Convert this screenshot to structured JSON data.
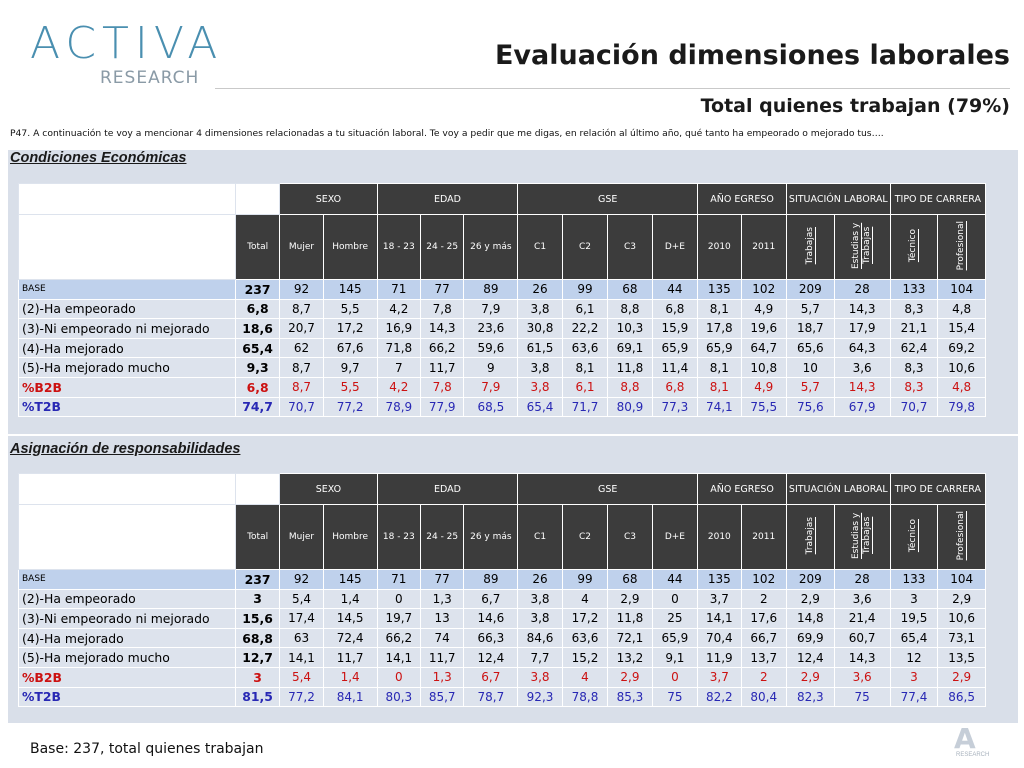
{
  "header": {
    "logo_text": "ACTIVA",
    "logo_subtext": "RESEARCH",
    "title": "Evaluación dimensiones laborales",
    "subtitle": "Total quienes trabajan (79%)"
  },
  "question": "P47. A continuación te voy a mencionar 4 dimensiones relacionadas a tu situación laboral. Te voy a pedir que me digas, en relación al último año, qué tanto ha empeorado o mejorado tus….",
  "column_groups": [
    {
      "label": "SEXO",
      "span": 2
    },
    {
      "label": "EDAD",
      "span": 3
    },
    {
      "label": "GSE",
      "span": 4
    },
    {
      "label": "AÑO EGRESO",
      "span": 2
    },
    {
      "label": "SITUACIÓN LABORAL",
      "span": 2
    },
    {
      "label": "TIPO DE CARRERA",
      "span": 2
    }
  ],
  "columns": [
    "Total",
    "Mujer",
    "Hombre",
    "18 - 23",
    "24 - 25",
    "26 y más",
    "C1",
    "C2",
    "C3",
    "D+E",
    "2010",
    "2011",
    "Trabajas",
    "Estudias y Trabajas",
    "Técnico",
    "Profesional"
  ],
  "sections": [
    {
      "label": "Condiciones Económicas",
      "rows": [
        {
          "label": "BASE",
          "type": "base",
          "values": [
            "237",
            "92",
            "145",
            "71",
            "77",
            "89",
            "26",
            "99",
            "68",
            "44",
            "135",
            "102",
            "209",
            "28",
            "133",
            "104"
          ]
        },
        {
          "label": "(2)-Ha empeorado",
          "type": "normal",
          "values": [
            "6,8",
            "8,7",
            "5,5",
            "4,2",
            "7,8",
            "7,9",
            "3,8",
            "6,1",
            "8,8",
            "6,8",
            "8,1",
            "4,9",
            "5,7",
            "14,3",
            "8,3",
            "4,8"
          ]
        },
        {
          "label": "(3)-Ni empeorado ni mejorado",
          "type": "normal",
          "values": [
            "18,6",
            "20,7",
            "17,2",
            "16,9",
            "14,3",
            "23,6",
            "30,8",
            "22,2",
            "10,3",
            "15,9",
            "17,8",
            "19,6",
            "18,7",
            "17,9",
            "21,1",
            "15,4"
          ]
        },
        {
          "label": "(4)-Ha mejorado",
          "type": "normal",
          "values": [
            "65,4",
            "62",
            "67,6",
            "71,8",
            "66,2",
            "59,6",
            "61,5",
            "63,6",
            "69,1",
            "65,9",
            "65,9",
            "64,7",
            "65,6",
            "64,3",
            "62,4",
            "69,2"
          ]
        },
        {
          "label": "(5)-Ha mejorado mucho",
          "type": "normal",
          "values": [
            "9,3",
            "8,7",
            "9,7",
            "7",
            "11,7",
            "9",
            "3,8",
            "8,1",
            "11,8",
            "11,4",
            "8,1",
            "10,8",
            "10",
            "3,6",
            "8,3",
            "10,6"
          ]
        },
        {
          "label": "%B2B",
          "type": "b2b",
          "values": [
            "6,8",
            "8,7",
            "5,5",
            "4,2",
            "7,8",
            "7,9",
            "3,8",
            "6,1",
            "8,8",
            "6,8",
            "8,1",
            "4,9",
            "5,7",
            "14,3",
            "8,3",
            "4,8"
          ]
        },
        {
          "label": "%T2B",
          "type": "t2b",
          "values": [
            "74,7",
            "70,7",
            "77,2",
            "78,9",
            "77,9",
            "68,5",
            "65,4",
            "71,7",
            "80,9",
            "77,3",
            "74,1",
            "75,5",
            "75,6",
            "67,9",
            "70,7",
            "79,8"
          ]
        }
      ]
    },
    {
      "label": "Asignación de responsabilidades",
      "rows": [
        {
          "label": "BASE",
          "type": "base",
          "values": [
            "237",
            "92",
            "145",
            "71",
            "77",
            "89",
            "26",
            "99",
            "68",
            "44",
            "135",
            "102",
            "209",
            "28",
            "133",
            "104"
          ]
        },
        {
          "label": "(2)-Ha empeorado",
          "type": "normal",
          "values": [
            "3",
            "5,4",
            "1,4",
            "0",
            "1,3",
            "6,7",
            "3,8",
            "4",
            "2,9",
            "0",
            "3,7",
            "2",
            "2,9",
            "3,6",
            "3",
            "2,9"
          ]
        },
        {
          "label": "(3)-Ni empeorado ni mejorado",
          "type": "normal",
          "values": [
            "15,6",
            "17,4",
            "14,5",
            "19,7",
            "13",
            "14,6",
            "3,8",
            "17,2",
            "11,8",
            "25",
            "14,1",
            "17,6",
            "14,8",
            "21,4",
            "19,5",
            "10,6"
          ]
        },
        {
          "label": "(4)-Ha mejorado",
          "type": "normal",
          "values": [
            "68,8",
            "63",
            "72,4",
            "66,2",
            "74",
            "66,3",
            "84,6",
            "63,6",
            "72,1",
            "65,9",
            "70,4",
            "66,7",
            "69,9",
            "60,7",
            "65,4",
            "73,1"
          ]
        },
        {
          "label": "(5)-Ha mejorado mucho",
          "type": "normal",
          "values": [
            "12,7",
            "14,1",
            "11,7",
            "14,1",
            "11,7",
            "12,4",
            "7,7",
            "15,2",
            "13,2",
            "9,1",
            "11,9",
            "13,7",
            "12,4",
            "14,3",
            "12",
            "13,5"
          ]
        },
        {
          "label": "%B2B",
          "type": "b2b",
          "values": [
            "3",
            "5,4",
            "1,4",
            "0",
            "1,3",
            "6,7",
            "3,8",
            "4",
            "2,9",
            "0",
            "3,7",
            "2",
            "2,9",
            "3,6",
            "3",
            "2,9"
          ]
        },
        {
          "label": "%T2B",
          "type": "t2b",
          "values": [
            "81,5",
            "77,2",
            "84,1",
            "80,3",
            "85,7",
            "78,7",
            "92,3",
            "78,8",
            "85,3",
            "75",
            "82,2",
            "80,4",
            "82,3",
            "75",
            "77,4",
            "86,5"
          ]
        }
      ]
    }
  ],
  "footer": {
    "base_note": "Base: 237, total quienes trabajan",
    "watermark": "A",
    "watermark_sub": "RESEARCH"
  }
}
